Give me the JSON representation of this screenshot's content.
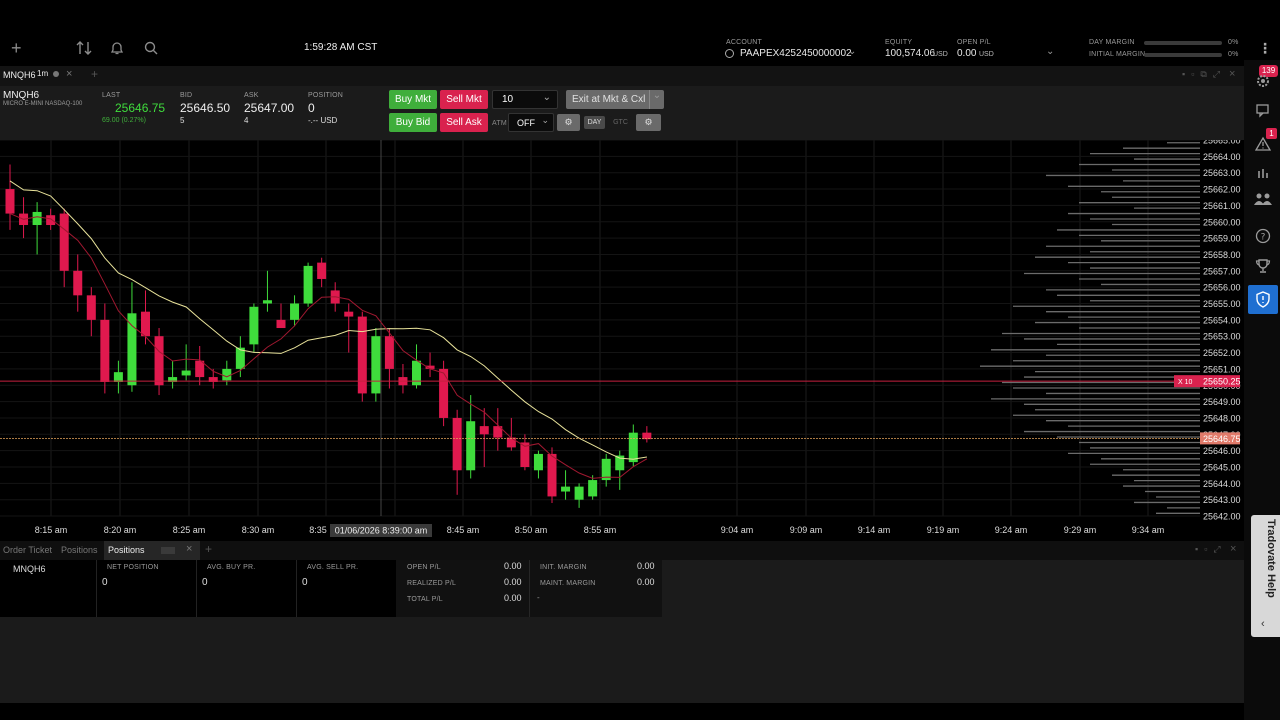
{
  "top": {
    "time": "1:59:28 AM CST",
    "account_label": "ACCOUNT",
    "account_value": "PAAPEX4252450000002",
    "equity_label": "EQUITY",
    "equity_value": "100,574.06",
    "equity_unit": "USD",
    "openpl_label": "OPEN P/L",
    "openpl_value": "0.00",
    "openpl_unit": "USD",
    "day_margin_label": "DAY MARGIN",
    "day_margin_pct": "0%",
    "initial_margin_label": "INITIAL MARGIN",
    "initial_margin_pct": "0%"
  },
  "tab": {
    "symbol": "MNQH6",
    "interval": "1m"
  },
  "quote": {
    "symbol": "MNQH6",
    "name": "MICRO E-MINI NASDAQ-100",
    "last_label": "LAST",
    "last": "25646.75",
    "change": "69.00 (0.27%)",
    "bid_label": "BID",
    "bid": "25646.50",
    "bid_size": "5",
    "ask_label": "ASK",
    "ask": "25647.00",
    "ask_size": "4",
    "position_label": "POSITION",
    "position": "0",
    "position_pl": "-.-- USD"
  },
  "trade": {
    "buy_mkt": "Buy Mkt",
    "sell_mkt": "Sell Mkt",
    "qty": "10",
    "exit": "Exit at Mkt & Cxl",
    "buy_bid": "Buy Bid",
    "sell_ask": "Sell Ask",
    "atm_label": "ATM",
    "atm_value": "OFF",
    "day": "DAY",
    "gtc": "GTC"
  },
  "chart_data": {
    "type": "candlestick",
    "price_ticks": [
      "25665.00",
      "25664.00",
      "25663.00",
      "25662.00",
      "25661.00",
      "25660.00",
      "25659.00",
      "25658.00",
      "25657.00",
      "25656.00",
      "25655.00",
      "25654.00",
      "25653.00",
      "25652.00",
      "25651.00",
      "25650.00",
      "25649.00",
      "25648.00",
      "25647.00",
      "25646.00",
      "25645.00",
      "25644.00",
      "25643.00",
      "25642.00"
    ],
    "time_ticks": [
      "8:15 am",
      "8:20 am",
      "8:25 am",
      "8:30 am",
      "8:35",
      "8:45 am",
      "8:50 am",
      "8:55 am",
      "9:04 am",
      "9:09 am",
      "9:14 am",
      "9:19 am",
      "9:24 am",
      "9:29 am",
      "9:34 am"
    ],
    "crosshair_time": "01/06/2026 8:39:00 am",
    "last_price_tag": "25646.75",
    "order_tag": "25650.25",
    "order_qty": "X 10",
    "candles": [
      {
        "o": 25662.0,
        "h": 25663.5,
        "l": 25659.5,
        "c": 25660.5
      },
      {
        "o": 25660.5,
        "h": 25661.5,
        "l": 25659.0,
        "c": 25659.8
      },
      {
        "o": 25659.8,
        "h": 25661.2,
        "l": 25658.0,
        "c": 25660.6
      },
      {
        "o": 25660.4,
        "h": 25660.8,
        "l": 25659.5,
        "c": 25659.8
      },
      {
        "o": 25660.5,
        "h": 25660.8,
        "l": 25656.0,
        "c": 25657.0
      },
      {
        "o": 25657.0,
        "h": 25658.0,
        "l": 25654.5,
        "c": 25655.5
      },
      {
        "o": 25655.5,
        "h": 25656.0,
        "l": 25653.0,
        "c": 25654.0
      },
      {
        "o": 25654.0,
        "h": 25655.0,
        "l": 25649.5,
        "c": 25650.2
      },
      {
        "o": 25650.2,
        "h": 25651.5,
        "l": 25649.5,
        "c": 25650.8
      },
      {
        "o": 25650.0,
        "h": 25656.3,
        "l": 25649.6,
        "c": 25654.4
      },
      {
        "o": 25654.5,
        "h": 25655.8,
        "l": 25652.5,
        "c": 25653.0
      },
      {
        "o": 25653.0,
        "h": 25653.5,
        "l": 25649.4,
        "c": 25650.0
      },
      {
        "o": 25650.2,
        "h": 25651.5,
        "l": 25649.8,
        "c": 25650.5
      },
      {
        "o": 25650.6,
        "h": 25652.5,
        "l": 25650.3,
        "c": 25650.9
      },
      {
        "o": 25651.5,
        "h": 25652.4,
        "l": 25650.0,
        "c": 25650.5
      },
      {
        "o": 25650.5,
        "h": 25651.0,
        "l": 25649.8,
        "c": 25650.2
      },
      {
        "o": 25650.3,
        "h": 25651.5,
        "l": 25650.0,
        "c": 25651.0
      },
      {
        "o": 25651.0,
        "h": 25653.0,
        "l": 25650.5,
        "c": 25652.3
      },
      {
        "o": 25652.5,
        "h": 25655.0,
        "l": 25652.0,
        "c": 25654.8
      },
      {
        "o": 25655.0,
        "h": 25657.0,
        "l": 25654.5,
        "c": 25655.2
      },
      {
        "o": 25654.0,
        "h": 25655.0,
        "l": 25653.5,
        "c": 25653.5
      },
      {
        "o": 25654.0,
        "h": 25655.5,
        "l": 25653.6,
        "c": 25655.0
      },
      {
        "o": 25655.0,
        "h": 25657.5,
        "l": 25654.8,
        "c": 25657.3
      },
      {
        "o": 25657.5,
        "h": 25657.8,
        "l": 25656.0,
        "c": 25656.5
      },
      {
        "o": 25655.8,
        "h": 25656.3,
        "l": 25654.5,
        "c": 25655.0
      },
      {
        "o": 25654.5,
        "h": 25655.0,
        "l": 25652.0,
        "c": 25654.2
      },
      {
        "o": 25654.2,
        "h": 25654.5,
        "l": 25649.0,
        "c": 25649.5
      },
      {
        "o": 25649.5,
        "h": 25653.5,
        "l": 25649.0,
        "c": 25653.0
      },
      {
        "o": 25653.0,
        "h": 25653.5,
        "l": 25649.8,
        "c": 25651.0
      },
      {
        "o": 25650.5,
        "h": 25651.3,
        "l": 25649.5,
        "c": 25650.0
      },
      {
        "o": 25650.0,
        "h": 25652.5,
        "l": 25649.8,
        "c": 25651.5
      },
      {
        "o": 25651.2,
        "h": 25652.0,
        "l": 25650.5,
        "c": 25651.0
      },
      {
        "o": 25651.0,
        "h": 25651.5,
        "l": 25647.5,
        "c": 25648.0
      },
      {
        "o": 25648.0,
        "h": 25648.5,
        "l": 25643.3,
        "c": 25644.8
      },
      {
        "o": 25644.8,
        "h": 25649.4,
        "l": 25644.3,
        "c": 25647.8
      },
      {
        "o": 25647.5,
        "h": 25648.6,
        "l": 25645.0,
        "c": 25647.0
      },
      {
        "o": 25647.5,
        "h": 25648.6,
        "l": 25646.0,
        "c": 25646.8
      },
      {
        "o": 25646.8,
        "h": 25648.0,
        "l": 25646.0,
        "c": 25646.2
      },
      {
        "o": 25646.5,
        "h": 25647.0,
        "l": 25644.8,
        "c": 25645.0
      },
      {
        "o": 25644.8,
        "h": 25646.0,
        "l": 25644.3,
        "c": 25645.8
      },
      {
        "o": 25645.8,
        "h": 25646.2,
        "l": 25642.8,
        "c": 25643.2
      },
      {
        "o": 25643.5,
        "h": 25644.8,
        "l": 25643.0,
        "c": 25643.8
      },
      {
        "o": 25643.0,
        "h": 25644.0,
        "l": 25642.5,
        "c": 25643.8
      },
      {
        "o": 25643.2,
        "h": 25644.5,
        "l": 25643.0,
        "c": 25644.2
      },
      {
        "o": 25644.2,
        "h": 25645.8,
        "l": 25643.8,
        "c": 25645.5
      },
      {
        "o": 25644.8,
        "h": 25646.0,
        "l": 25643.6,
        "c": 25645.7
      },
      {
        "o": 25645.3,
        "h": 25647.6,
        "l": 25645.0,
        "c": 25647.1
      },
      {
        "o": 25647.1,
        "h": 25647.5,
        "l": 25646.5,
        "c": 25646.7
      }
    ]
  },
  "bottom": {
    "tab_order_ticket": "Order Ticket",
    "tab_positions1": "Positions",
    "tab_positions2": "Positions",
    "symbol": "MNQH6",
    "net_position_label": "NET POSITION",
    "net_position": "0",
    "avg_buy_label": "AVG. BUY PR.",
    "avg_buy": "0",
    "avg_sell_label": "AVG. SELL PR.",
    "avg_sell": "0",
    "open_pl_label": "OPEN P/L",
    "open_pl": "0.00",
    "realized_pl_label": "REALIZED P/L",
    "realized_pl": "0.00",
    "total_pl_label": "TOTAL P/L",
    "total_pl": "0.00",
    "init_margin_label": "INIT. MARGIN",
    "init_margin": "0.00",
    "maint_margin_label": "MAINT. MARGIN",
    "maint_margin": "0.00",
    "dash": "-"
  },
  "right": {
    "badge_top": "139",
    "badge_alert": "1",
    "help": "Tradovate Help"
  },
  "colors": {
    "green": "#3fdc3c",
    "red": "#e0194e",
    "accent": "#1f6fd1"
  }
}
